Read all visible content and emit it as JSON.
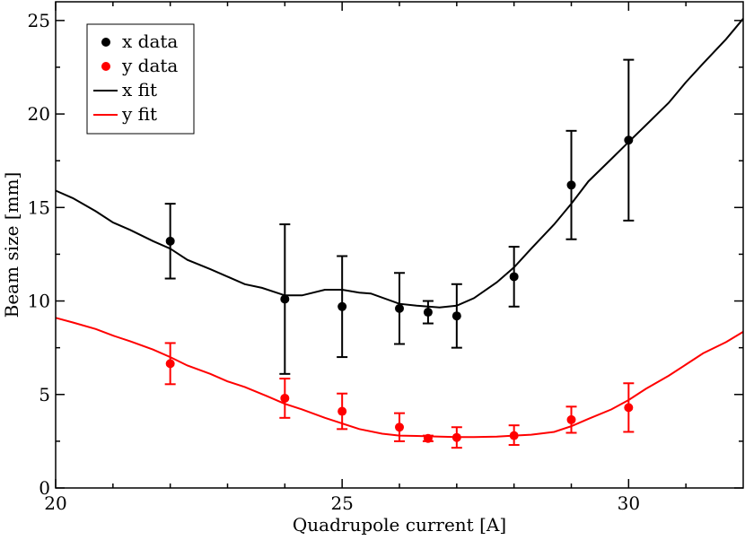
{
  "chart_data": {
    "type": "scatter",
    "title": "",
    "xlabel": "Quadrupole current [A]",
    "ylabel": "Beam size [mm]",
    "xlim": [
      20,
      32
    ],
    "ylim": [
      0,
      26
    ],
    "x_ticks": [
      20,
      25,
      30
    ],
    "x_minor_ticks": [
      21,
      22,
      23,
      24,
      26,
      27,
      28,
      29,
      31
    ],
    "y_ticks": [
      0,
      5,
      10,
      15,
      20,
      25
    ],
    "legend_position": "top-left",
    "colors": {
      "x": "#000000",
      "y": "#ff0000"
    },
    "series": [
      {
        "name": "x data",
        "kind": "points",
        "color": "#000000",
        "points": [
          {
            "x": 22,
            "y": 13.2,
            "low": 11.2,
            "high": 15.2
          },
          {
            "x": 24,
            "y": 10.1,
            "low": 6.1,
            "high": 14.1
          },
          {
            "x": 25,
            "y": 9.7,
            "low": 7.0,
            "high": 12.4
          },
          {
            "x": 26,
            "y": 9.6,
            "low": 7.7,
            "high": 11.5
          },
          {
            "x": 26.5,
            "y": 9.4,
            "low": 8.8,
            "high": 10.0
          },
          {
            "x": 27,
            "y": 9.2,
            "low": 7.5,
            "high": 10.9
          },
          {
            "x": 28,
            "y": 11.3,
            "low": 9.7,
            "high": 12.9
          },
          {
            "x": 29,
            "y": 16.2,
            "low": 13.3,
            "high": 19.1
          },
          {
            "x": 30,
            "y": 18.6,
            "low": 14.3,
            "high": 22.9
          }
        ]
      },
      {
        "name": "y data",
        "kind": "points",
        "color": "#ff0000",
        "points": [
          {
            "x": 22,
            "y": 6.65,
            "low": 5.55,
            "high": 7.75
          },
          {
            "x": 24,
            "y": 4.8,
            "low": 3.75,
            "high": 5.85
          },
          {
            "x": 25,
            "y": 4.1,
            "low": 3.15,
            "high": 5.05
          },
          {
            "x": 26,
            "y": 3.25,
            "low": 2.5,
            "high": 4.0
          },
          {
            "x": 26.5,
            "y": 2.65,
            "low": 2.5,
            "high": 2.8
          },
          {
            "x": 27,
            "y": 2.7,
            "low": 2.15,
            "high": 3.25
          },
          {
            "x": 28,
            "y": 2.8,
            "low": 2.3,
            "high": 3.35
          },
          {
            "x": 29,
            "y": 3.65,
            "low": 2.95,
            "high": 4.35
          },
          {
            "x": 30,
            "y": 4.3,
            "low": 3.0,
            "high": 5.6
          }
        ]
      },
      {
        "name": "x fit",
        "kind": "line",
        "color": "#000000",
        "x": [
          20,
          20.3,
          20.7,
          21,
          21.3,
          21.7,
          22,
          22.3,
          22.7,
          23,
          23.3,
          23.6,
          24,
          24.3,
          24.7,
          25,
          25.3,
          25.5,
          26,
          26.3,
          26.7,
          27,
          27.3,
          27.7,
          28,
          28.3,
          28.7,
          29,
          29.3,
          29.7,
          30,
          30.3,
          30.7,
          31,
          31.3,
          31.7,
          32
        ],
        "y": [
          15.9,
          15.5,
          14.8,
          14.2,
          13.8,
          13.2,
          12.8,
          12.2,
          11.7,
          11.3,
          10.9,
          10.7,
          10.3,
          10.3,
          10.6,
          10.6,
          10.45,
          10.4,
          9.85,
          9.75,
          9.65,
          9.75,
          10.15,
          11.0,
          11.8,
          12.8,
          14.1,
          15.2,
          16.4,
          17.6,
          18.5,
          19.4,
          20.6,
          21.7,
          22.7,
          24.0,
          25.1
        ]
      },
      {
        "name": "y fit",
        "kind": "line",
        "color": "#ff0000",
        "x": [
          20,
          20.3,
          20.7,
          21,
          21.3,
          21.7,
          22,
          22.3,
          22.7,
          23,
          23.3,
          23.7,
          24,
          24.3,
          24.7,
          25,
          25.3,
          25.7,
          26,
          26.3,
          26.7,
          27,
          27.3,
          27.7,
          28,
          28.3,
          28.7,
          29,
          29.3,
          29.7,
          30,
          30.3,
          30.7,
          31,
          31.3,
          31.7,
          32
        ],
        "y": [
          9.1,
          8.85,
          8.5,
          8.15,
          7.85,
          7.4,
          7.0,
          6.55,
          6.1,
          5.7,
          5.4,
          4.9,
          4.5,
          4.2,
          3.75,
          3.45,
          3.15,
          2.9,
          2.8,
          2.78,
          2.75,
          2.72,
          2.72,
          2.75,
          2.8,
          2.85,
          3.0,
          3.3,
          3.7,
          4.2,
          4.7,
          5.3,
          6.0,
          6.6,
          7.2,
          7.8,
          8.35
        ]
      }
    ]
  }
}
